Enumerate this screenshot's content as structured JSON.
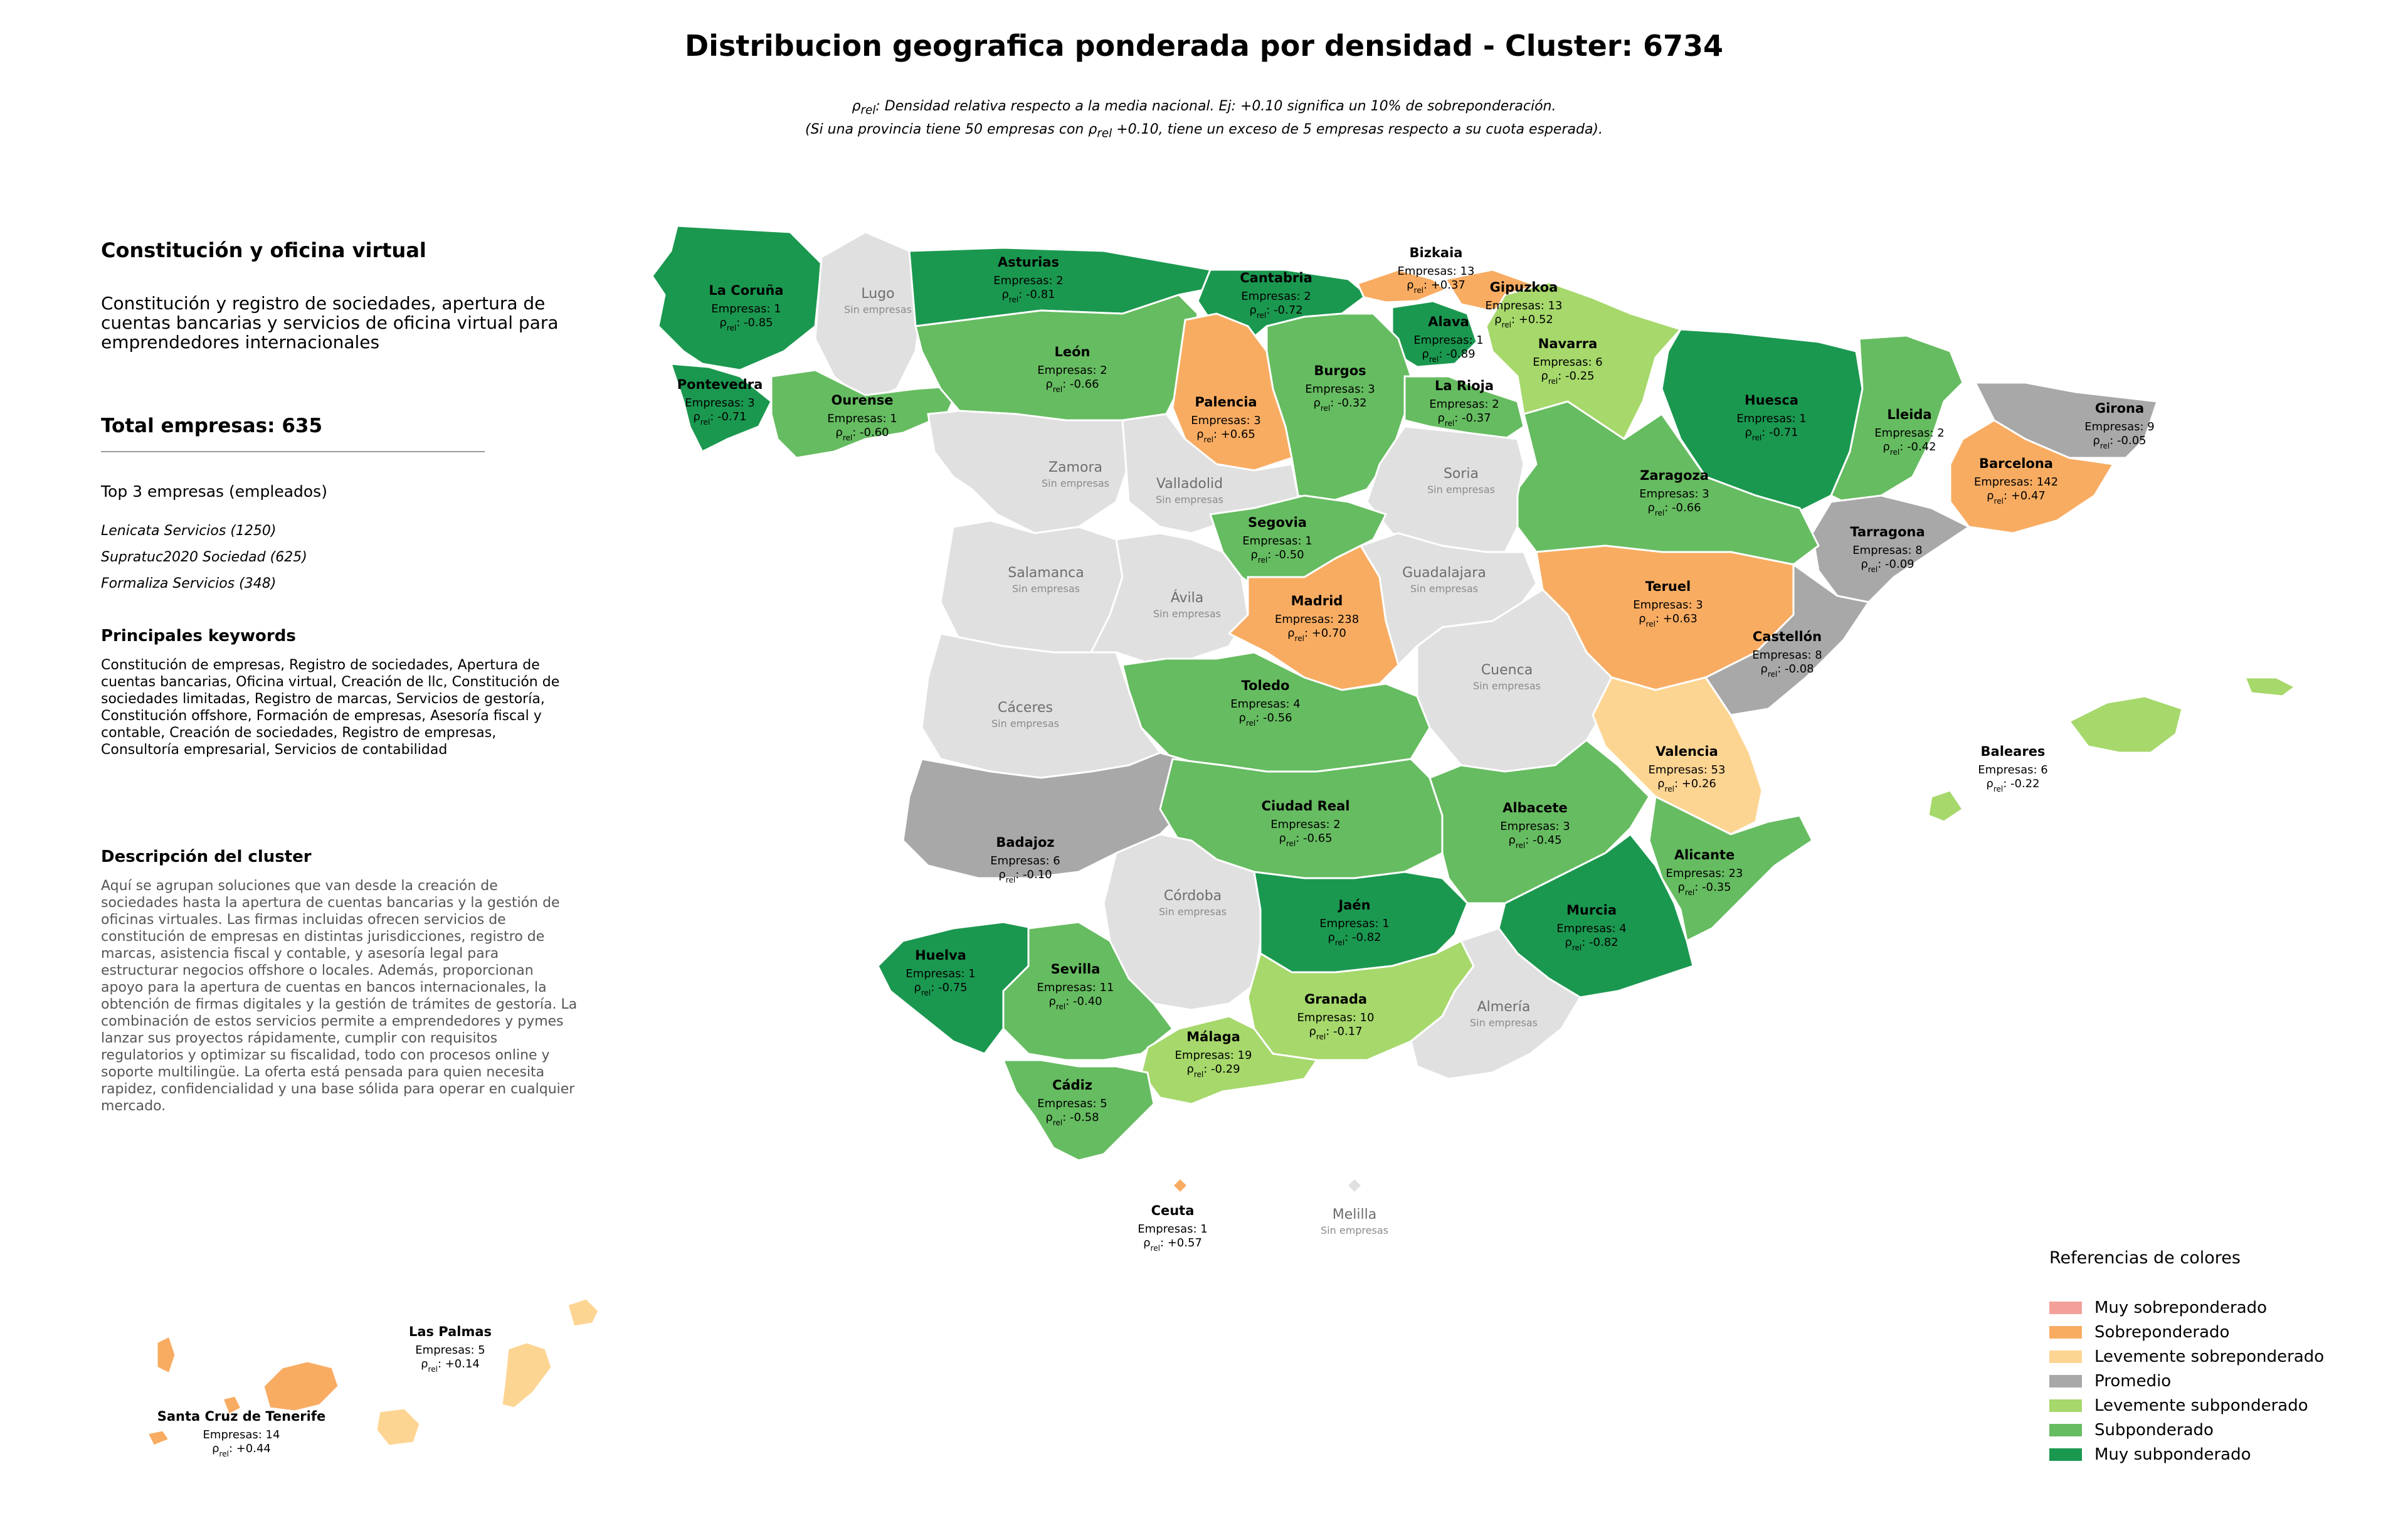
{
  "title": "Distribucion geografica ponderada por densidad - Cluster: 6734",
  "note": {
    "rho_symbol": "ρ",
    "rel_subscript": "rel",
    "line1_text": ": Densidad relativa respecto a la media nacional. Ej: +0.10 significa un 10% de sobreponderación.",
    "line2_before": "(Si una provincia tiene 50 empresas con ",
    "line2_after": " +0.10, tiene un exceso de 5 empresas respecto a su cuota esperada)."
  },
  "sidebar": {
    "cluster_name": "Constitución y oficina virtual",
    "cluster_summary": "Constitución y registro de sociedades, apertura de cuentas bancarias y servicios de oficina virtual para emprendedores internacionales",
    "total_label": "Total empresas: 635",
    "top3_title": "Top 3 empresas (empleados)",
    "top3": [
      "Lenicata Servicios (1250)",
      "Supratuc2020 Sociedad (625)",
      "Formaliza Servicios (348)"
    ],
    "keywords_title": "Principales keywords",
    "keywords_text": "Constitución de empresas, Registro de sociedades, Apertura de cuentas bancarias, Oficina virtual, Creación de llc, Constitución de sociedades limitadas, Registro de marcas, Servicios de gestoría, Constitución offshore, Formación de empresas, Asesoría fiscal y contable, Creación de sociedades, Registro de empresas, Consultoría empresarial, Servicios de contabilidad",
    "description_title": "Descripción del cluster",
    "description_text": "Aquí se agrupan soluciones que van desde la creación de sociedades hasta la apertura de cuentas bancarias y la gestión de oficinas virtuales. Las firmas incluidas ofrecen servicios de constitución de empresas en distintas jurisdicciones, registro de marcas, asistencia fiscal y contable, y asesoría legal para estructurar negocios offshore o locales. Además, proporcionan apoyo para la apertura de cuentas en bancos internacionales, la obtención de firmas digitales y la gestión de trámites de gestoría. La combinación de estos servicios permite a emprendedores y pymes lanzar sus proyectos rápidamente, cumplir con requisitos regulatorios y optimizar su fiscalidad, todo con procesos online y soporte multilingüe. La oferta está pensada para quien necesita rapidez, confidencialidad y una base sólida para operar en cualquier mercado."
  },
  "labels": {
    "companies_prefix": "Empresas: ",
    "no_companies": "Sin empresas"
  },
  "colors": {
    "muy_sobre": "#f4a09a",
    "sobre": "#f8ac62",
    "lev_sobre": "#fdd593",
    "promedio": "#a8a8a8",
    "lev_sub": "#a6d86b",
    "sub": "#66bc61",
    "muy_sub": "#1b9850",
    "sin": "#e0e0e0"
  },
  "legend": {
    "title": "Referencias de colores",
    "items": [
      {
        "label": "Muy sobreponderado",
        "color": "#f4a09a"
      },
      {
        "label": "Sobreponderado",
        "color": "#f8ac62"
      },
      {
        "label": "Levemente sobreponderado",
        "color": "#fdd593"
      },
      {
        "label": "Promedio",
        "color": "#a8a8a8"
      },
      {
        "label": "Levemente subponderado",
        "color": "#a6d86b"
      },
      {
        "label": "Subponderado",
        "color": "#66bc61"
      },
      {
        "label": "Muy subponderado",
        "color": "#1b9850"
      }
    ]
  },
  "provinces": [
    {
      "name": "La Coruña",
      "companies": 1,
      "rho": "-0.85",
      "category": "muy_sub"
    },
    {
      "name": "Lugo",
      "companies": null,
      "rho": null,
      "category": "sin"
    },
    {
      "name": "Asturias",
      "companies": 2,
      "rho": "-0.81",
      "category": "muy_sub"
    },
    {
      "name": "Cantabria",
      "companies": 2,
      "rho": "-0.72",
      "category": "muy_sub"
    },
    {
      "name": "Bizkaia",
      "companies": 13,
      "rho": "+0.37",
      "category": "sobre"
    },
    {
      "name": "Gipuzkoa",
      "companies": 13,
      "rho": "+0.52",
      "category": "sobre"
    },
    {
      "name": "Alava",
      "companies": 1,
      "rho": "-0.89",
      "category": "muy_sub"
    },
    {
      "name": "Navarra",
      "companies": 6,
      "rho": "-0.25",
      "category": "lev_sub"
    },
    {
      "name": "Huesca",
      "companies": 1,
      "rho": "-0.71",
      "category": "muy_sub"
    },
    {
      "name": "Lleida",
      "companies": 2,
      "rho": "-0.42",
      "category": "sub"
    },
    {
      "name": "Girona",
      "companies": 9,
      "rho": "-0.05",
      "category": "promedio"
    },
    {
      "name": "Barcelona",
      "companies": 142,
      "rho": "+0.47",
      "category": "sobre"
    },
    {
      "name": "Tarragona",
      "companies": 8,
      "rho": "-0.09",
      "category": "promedio"
    },
    {
      "name": "Pontevedra",
      "companies": 3,
      "rho": "-0.71",
      "category": "muy_sub"
    },
    {
      "name": "Ourense",
      "companies": 1,
      "rho": "-0.60",
      "category": "sub"
    },
    {
      "name": "León",
      "companies": 2,
      "rho": "-0.66",
      "category": "sub"
    },
    {
      "name": "Palencia",
      "companies": 3,
      "rho": "+0.65",
      "category": "sobre"
    },
    {
      "name": "Burgos",
      "companies": 3,
      "rho": "-0.32",
      "category": "sub"
    },
    {
      "name": "La Rioja",
      "companies": 2,
      "rho": "-0.37",
      "category": "sub"
    },
    {
      "name": "Zaragoza",
      "companies": 3,
      "rho": "-0.66",
      "category": "sub"
    },
    {
      "name": "Zamora",
      "companies": null,
      "rho": null,
      "category": "sin"
    },
    {
      "name": "Valladolid",
      "companies": null,
      "rho": null,
      "category": "sin"
    },
    {
      "name": "Soria",
      "companies": null,
      "rho": null,
      "category": "sin"
    },
    {
      "name": "Segovia",
      "companies": 1,
      "rho": "-0.50",
      "category": "sub"
    },
    {
      "name": "Salamanca",
      "companies": null,
      "rho": null,
      "category": "sin"
    },
    {
      "name": "Ávila",
      "companies": null,
      "rho": null,
      "category": "sin"
    },
    {
      "name": "Madrid",
      "companies": 238,
      "rho": "+0.70",
      "category": "sobre"
    },
    {
      "name": "Guadalajara",
      "companies": null,
      "rho": null,
      "category": "sin"
    },
    {
      "name": "Teruel",
      "companies": 3,
      "rho": "+0.63",
      "category": "sobre"
    },
    {
      "name": "Castellón",
      "companies": 8,
      "rho": "-0.08",
      "category": "promedio"
    },
    {
      "name": "Cáceres",
      "companies": null,
      "rho": null,
      "category": "sin"
    },
    {
      "name": "Toledo",
      "companies": 4,
      "rho": "-0.56",
      "category": "sub"
    },
    {
      "name": "Cuenca",
      "companies": null,
      "rho": null,
      "category": "sin"
    },
    {
      "name": "Valencia",
      "companies": 53,
      "rho": "+0.26",
      "category": "lev_sobre"
    },
    {
      "name": "Baleares",
      "companies": 6,
      "rho": "-0.22",
      "category": "lev_sub"
    },
    {
      "name": "Badajoz",
      "companies": 6,
      "rho": "-0.10",
      "category": "promedio"
    },
    {
      "name": "Ciudad Real",
      "companies": 2,
      "rho": "-0.65",
      "category": "sub"
    },
    {
      "name": "Albacete",
      "companies": 3,
      "rho": "-0.45",
      "category": "sub"
    },
    {
      "name": "Alicante",
      "companies": 23,
      "rho": "-0.35",
      "category": "sub"
    },
    {
      "name": "Córdoba",
      "companies": null,
      "rho": null,
      "category": "sin"
    },
    {
      "name": "Jaén",
      "companies": 1,
      "rho": "-0.82",
      "category": "muy_sub"
    },
    {
      "name": "Murcia",
      "companies": 4,
      "rho": "-0.82",
      "category": "muy_sub"
    },
    {
      "name": "Huelva",
      "companies": 1,
      "rho": "-0.75",
      "category": "muy_sub"
    },
    {
      "name": "Sevilla",
      "companies": 11,
      "rho": "-0.40",
      "category": "sub"
    },
    {
      "name": "Granada",
      "companies": 10,
      "rho": "-0.17",
      "category": "lev_sub"
    },
    {
      "name": "Almería",
      "companies": null,
      "rho": null,
      "category": "sin"
    },
    {
      "name": "Málaga",
      "companies": 19,
      "rho": "-0.29",
      "category": "lev_sub"
    },
    {
      "name": "Cádiz",
      "companies": 5,
      "rho": "-0.58",
      "category": "sub"
    },
    {
      "name": "Ceuta",
      "companies": 1,
      "rho": "+0.57",
      "category": "sobre"
    },
    {
      "name": "Melilla",
      "companies": null,
      "rho": null,
      "category": "sin"
    },
    {
      "name": "Las Palmas",
      "companies": 5,
      "rho": "+0.14",
      "category": "lev_sobre"
    },
    {
      "name": "Santa Cruz de Tenerife",
      "companies": 14,
      "rho": "+0.44",
      "category": "sobre"
    }
  ]
}
